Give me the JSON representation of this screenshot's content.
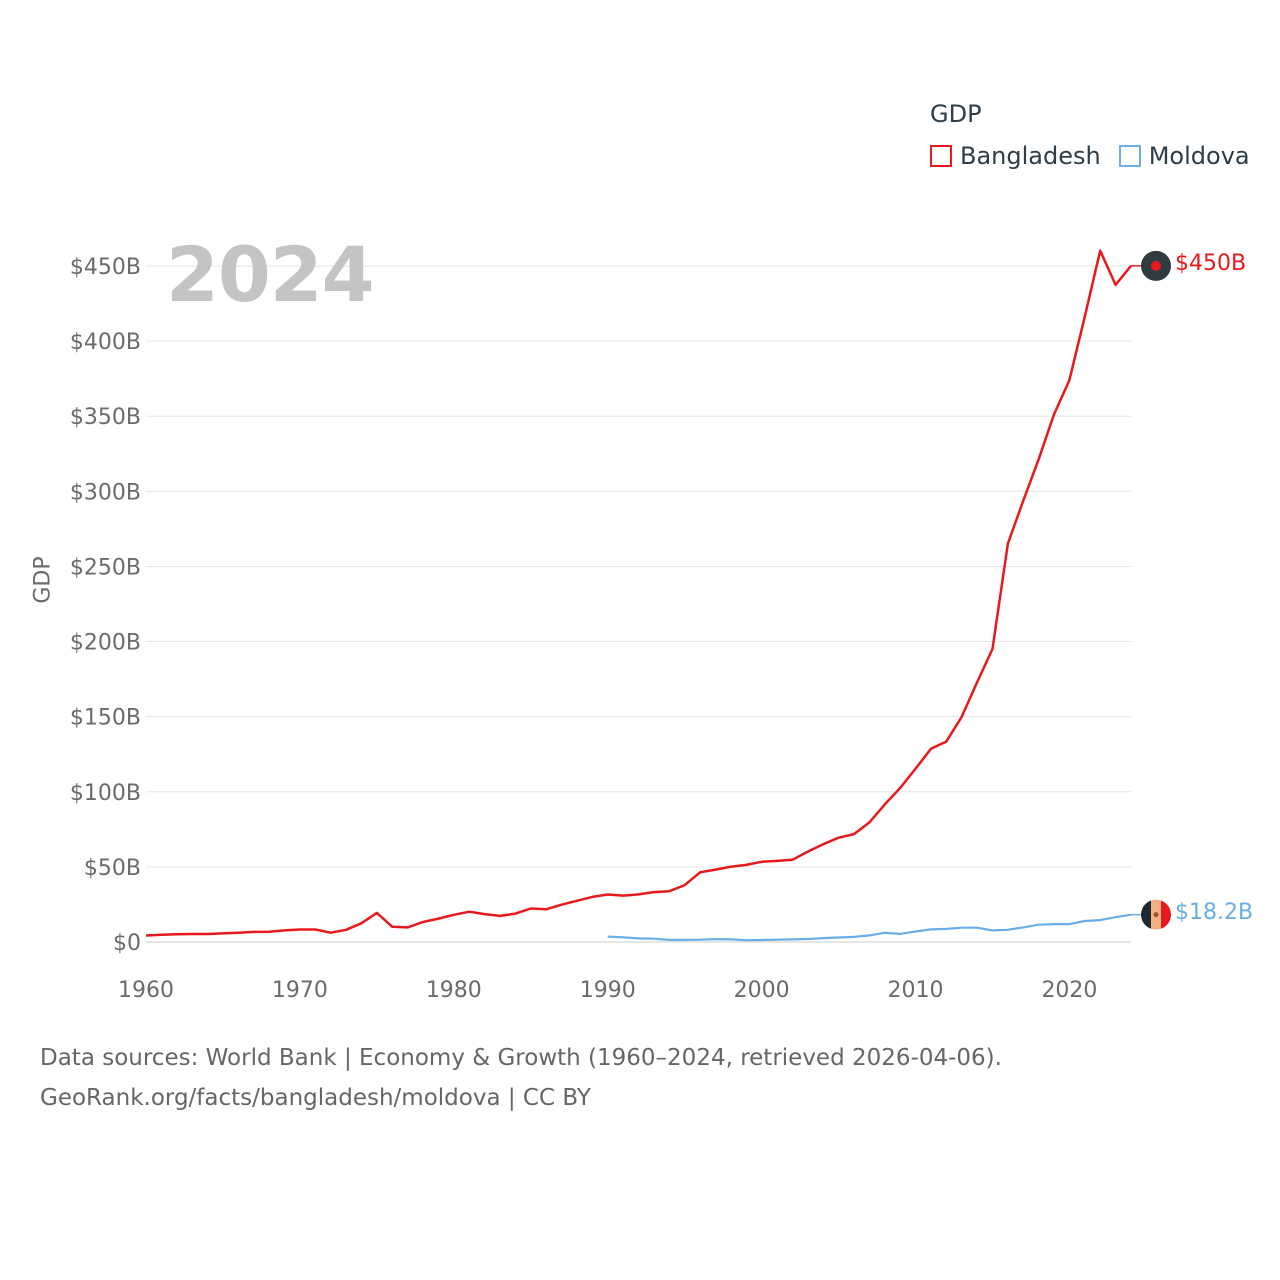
{
  "chart_data": {
    "type": "line",
    "legend_title": "GDP",
    "legend_position": "top-right",
    "ylabel": "GDP",
    "year_label": "2024",
    "ylim": [
      0,
      450
    ],
    "y_ticks": [
      0,
      50,
      100,
      150,
      200,
      250,
      300,
      350,
      400,
      450
    ],
    "y_tick_labels": [
      "$0",
      "$50B",
      "$100B",
      "$150B",
      "$200B",
      "$250B",
      "$300B",
      "$350B",
      "$400B",
      "$450B"
    ],
    "xlim": [
      1960,
      2024
    ],
    "x_ticks": [
      1960,
      1970,
      1980,
      1990,
      2000,
      2010,
      2020
    ],
    "x_tick_labels": [
      "1960",
      "1970",
      "1980",
      "1990",
      "2000",
      "2010",
      "2020"
    ],
    "grid": true,
    "series": [
      {
        "name": "Bangladesh",
        "color": "#e8191c",
        "end_label": "$450B",
        "x": [
          1960,
          1961,
          1962,
          1963,
          1964,
          1965,
          1966,
          1967,
          1968,
          1969,
          1970,
          1971,
          1972,
          1973,
          1974,
          1975,
          1976,
          1977,
          1978,
          1979,
          1980,
          1981,
          1982,
          1983,
          1984,
          1985,
          1986,
          1987,
          1988,
          1989,
          1990,
          1991,
          1992,
          1993,
          1994,
          1995,
          1996,
          1997,
          1998,
          1999,
          2000,
          2001,
          2002,
          2003,
          2004,
          2005,
          2006,
          2007,
          2008,
          2009,
          2010,
          2011,
          2012,
          2013,
          2014,
          2015,
          2016,
          2017,
          2018,
          2019,
          2020,
          2021,
          2022,
          2023,
          2024
        ],
        "values": [
          4.3,
          4.8,
          5.1,
          5.3,
          5.3,
          5.7,
          6.1,
          6.7,
          6.8,
          7.7,
          8.3,
          8.3,
          6.2,
          8.1,
          12.5,
          19.4,
          10.1,
          9.7,
          13.3,
          15.6,
          18.1,
          20.2,
          18.6,
          17.4,
          18.9,
          22.3,
          21.8,
          24.8,
          27.4,
          30.0,
          31.6,
          30.9,
          31.7,
          33.2,
          33.8,
          37.9,
          46.4,
          48.2,
          50.1,
          51.3,
          53.4,
          54.0,
          54.7,
          60.2,
          65.1,
          69.4,
          71.8,
          79.6,
          91.6,
          102.5,
          115.3,
          128.6,
          133.4,
          149.9,
          172.9,
          195.1,
          265.2,
          293.8,
          321.4,
          351.2,
          374.0,
          416.3,
          460.2,
          437.4,
          450.1
        ]
      },
      {
        "name": "Moldova",
        "color": "#6aaee8",
        "end_label": "$18.2B",
        "x": [
          1990,
          1991,
          1992,
          1993,
          1994,
          1995,
          1996,
          1997,
          1998,
          1999,
          2000,
          2001,
          2002,
          2003,
          2004,
          2005,
          2006,
          2007,
          2008,
          2009,
          2010,
          2011,
          2012,
          2013,
          2014,
          2015,
          2016,
          2017,
          2018,
          2019,
          2020,
          2021,
          2022,
          2023,
          2024
        ],
        "values": [
          3.6,
          3.1,
          2.4,
          2.2,
          1.4,
          1.4,
          1.5,
          1.9,
          1.7,
          1.2,
          1.3,
          1.5,
          1.7,
          2.0,
          2.6,
          3.0,
          3.4,
          4.4,
          6.1,
          5.4,
          6.97,
          8.4,
          8.7,
          9.5,
          9.5,
          7.7,
          8.1,
          9.7,
          11.5,
          11.9,
          11.9,
          14.0,
          14.6,
          16.5,
          18.2
        ]
      }
    ]
  },
  "source_line1": "Data sources: World Bank | Economy & Growth (1960–2024, retrieved 2026-04-06).",
  "source_line2": "GeoRank.org/facts/bangladesh/moldova | CC BY"
}
